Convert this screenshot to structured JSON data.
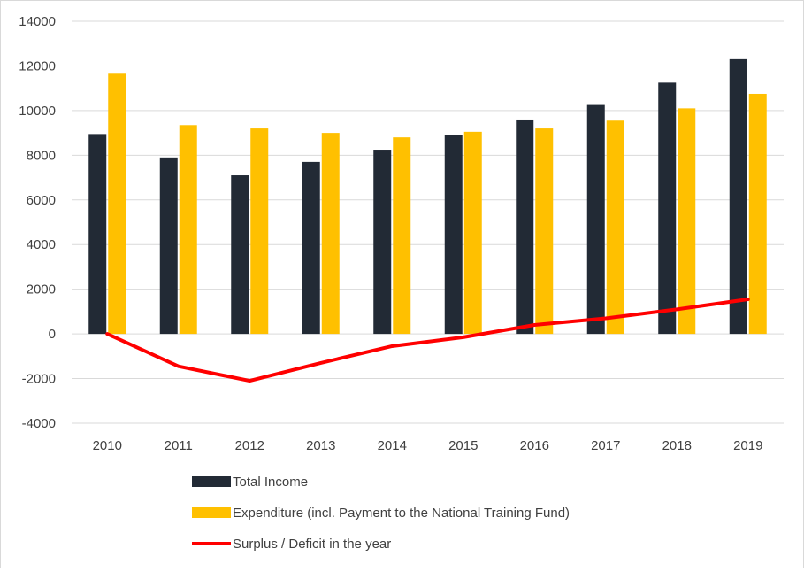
{
  "chart_data": {
    "type": "bar",
    "categories": [
      "2010",
      "2011",
      "2012",
      "2013",
      "2014",
      "2015",
      "2016",
      "2017",
      "2018",
      "2019"
    ],
    "series": [
      {
        "name": "Total Income",
        "kind": "bar",
        "color": "#222a35",
        "values": [
          8950,
          7900,
          7100,
          7700,
          8250,
          8900,
          9600,
          10250,
          11250,
          12300
        ]
      },
      {
        "name": "Expenditure (incl. Payment to the National Training Fund)",
        "kind": "bar",
        "color": "#ffc000",
        "values": [
          11650,
          9350,
          9200,
          9000,
          8800,
          9050,
          9200,
          9550,
          10100,
          10750
        ]
      },
      {
        "name": "Surplus / Deficit in the year",
        "kind": "line",
        "color": "#ff0000",
        "values": [
          0,
          -1450,
          -2100,
          -1300,
          -550,
          -150,
          400,
          700,
          1100,
          1550
        ]
      }
    ],
    "ylim": [
      -4000,
      14000
    ],
    "yticks": [
      14000,
      12000,
      10000,
      8000,
      6000,
      4000,
      2000,
      0,
      -2000,
      -4000
    ],
    "ytick_labels": [
      "14000",
      "12000",
      "10000",
      "8000",
      "6000",
      "4000",
      "2000",
      "0",
      "-2000",
      "-4000"
    ],
    "grid": true,
    "legend_position": "bottom",
    "title": "",
    "xlabel": "",
    "ylabel": ""
  }
}
